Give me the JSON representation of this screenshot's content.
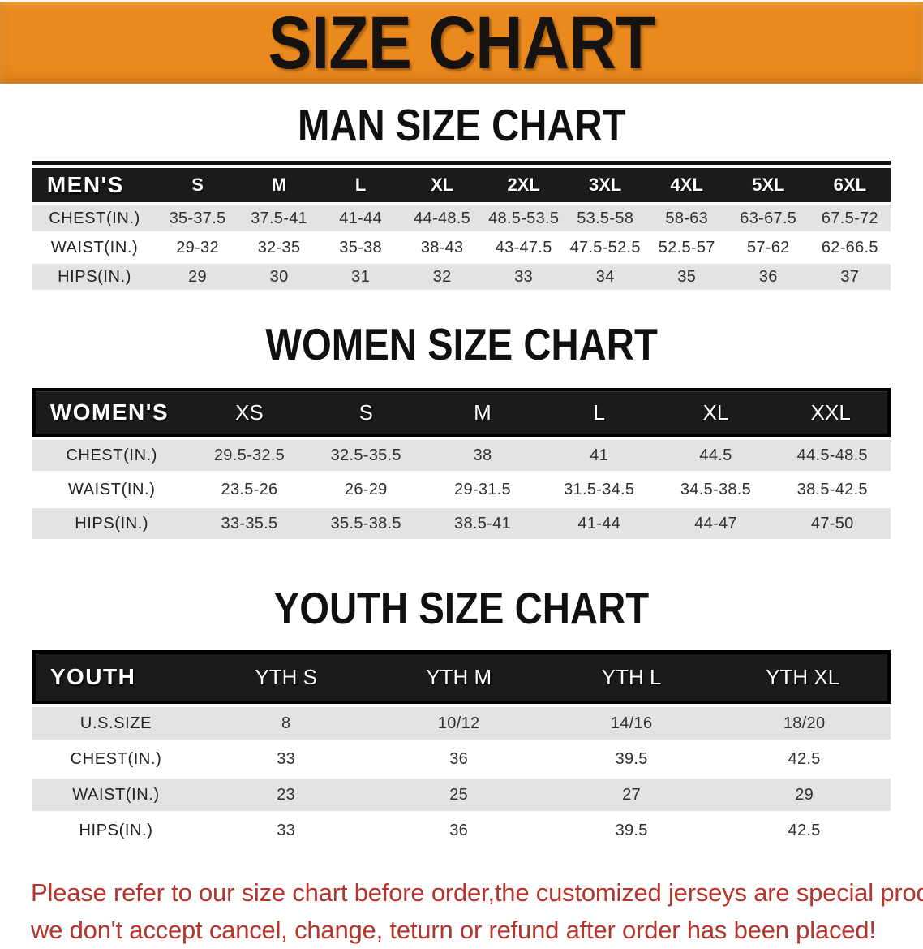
{
  "banner": {
    "title": "SIZE CHART",
    "bg_color": "#EA8A1E"
  },
  "sections": [
    {
      "id": "mens",
      "heading": "MAN SIZE CHART",
      "corner_label": "MEN'S",
      "columns": [
        "S",
        "M",
        "L",
        "XL",
        "2XL",
        "3XL",
        "4XL",
        "5XL",
        "6XL"
      ],
      "rows": [
        {
          "label": "CHEST(IN.)",
          "values": [
            "35-37.5",
            "37.5-41",
            "41-44",
            "44-48.5",
            "48.5-53.5",
            "53.5-58",
            "58-63",
            "63-67.5",
            "67.5-72"
          ]
        },
        {
          "label": "WAIST(IN.)",
          "values": [
            "29-32",
            "32-35",
            "35-38",
            "38-43",
            "43-47.5",
            "47.5-52.5",
            "52.5-57",
            "57-62",
            "62-66.5"
          ]
        },
        {
          "label": "HIPS(IN.)",
          "values": [
            "29",
            "30",
            "31",
            "32",
            "33",
            "34",
            "35",
            "36",
            "37"
          ]
        }
      ]
    },
    {
      "id": "womens",
      "heading": "WOMEN SIZE CHART",
      "corner_label": "WOMEN'S",
      "columns": [
        "XS",
        "S",
        "M",
        "L",
        "XL",
        "XXL"
      ],
      "rows": [
        {
          "label": "CHEST(IN.)",
          "values": [
            "29.5-32.5",
            "32.5-35.5",
            "38",
            "41",
            "44.5",
            "44.5-48.5"
          ]
        },
        {
          "label": "WAIST(IN.)",
          "values": [
            "23.5-26",
            "26-29",
            "29-31.5",
            "31.5-34.5",
            "34.5-38.5",
            "38.5-42.5"
          ]
        },
        {
          "label": "HIPS(IN.)",
          "values": [
            "33-35.5",
            "35.5-38.5",
            "38.5-41",
            "41-44",
            "44-47",
            "47-50"
          ]
        }
      ]
    },
    {
      "id": "youth",
      "heading": "YOUTH SIZE CHART",
      "corner_label": "YOUTH",
      "columns": [
        "YTH S",
        "YTH M",
        "YTH L",
        "YTH XL"
      ],
      "rows": [
        {
          "label": "U.S.SIZE",
          "values": [
            "8",
            "10/12",
            "14/16",
            "18/20"
          ]
        },
        {
          "label": "CHEST(IN.)",
          "values": [
            "33",
            "36",
            "39.5",
            "42.5"
          ]
        },
        {
          "label": "WAIST(IN.)",
          "values": [
            "23",
            "25",
            "27",
            "29"
          ]
        },
        {
          "label": "HIPS(IN.)",
          "values": [
            "33",
            "36",
            "39.5",
            "42.5"
          ]
        }
      ]
    }
  ],
  "disclaimer": {
    "color": "#B5342B",
    "lines": [
      "Please refer to our size chart before order,the customized jerseys are special products,",
      "we don't accept cancel, change, teturn or refund after order has been placed!"
    ]
  }
}
